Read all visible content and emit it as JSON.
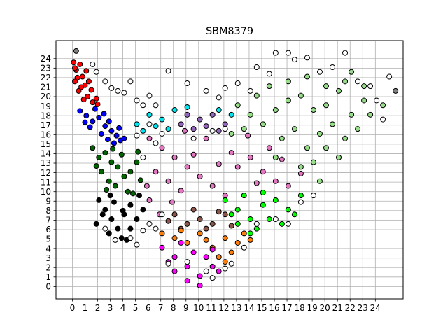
{
  "chart_data": {
    "type": "scatter",
    "title": "SBM8379",
    "xlabel": "",
    "ylabel": "",
    "xlim": [
      -1.3,
      26.2
    ],
    "ylim": [
      -1.3,
      25.9
    ],
    "xticks": [
      0,
      1,
      2,
      3,
      4,
      5,
      6,
      7,
      8,
      9,
      10,
      11,
      12,
      13,
      14,
      15,
      16,
      17,
      18,
      19,
      20,
      21,
      22,
      23,
      24
    ],
    "yticks": [
      0,
      1,
      2,
      3,
      4,
      5,
      6,
      7,
      8,
      9,
      10,
      11,
      12,
      13,
      14,
      15,
      16,
      17,
      18,
      19,
      20,
      21,
      22,
      23,
      24
    ],
    "grid": true,
    "marker": "circle, black edge",
    "clusters": [
      {
        "color": "#ff0000",
        "points": [
          [
            0.1,
            23.6
          ],
          [
            0.3,
            22.8
          ],
          [
            0.6,
            23.4
          ],
          [
            0.2,
            21.6
          ],
          [
            0.8,
            22.1
          ],
          [
            1.0,
            21.2
          ],
          [
            0.5,
            20.6
          ],
          [
            1.2,
            20.0
          ],
          [
            1.5,
            20.7
          ],
          [
            0.9,
            19.7
          ],
          [
            1.6,
            19.4
          ],
          [
            0.4,
            22.0
          ],
          [
            1.1,
            22.7
          ],
          [
            0.7,
            21.0
          ],
          [
            1.9,
            19.8
          ],
          [
            1.3,
            21.6
          ],
          [
            2.0,
            19.2
          ],
          [
            0.2,
            23.0
          ]
        ]
      },
      {
        "color": "#0000ff",
        "points": [
          [
            0.6,
            18.5
          ],
          [
            1.1,
            18.0
          ],
          [
            1.6,
            17.4
          ],
          [
            2.1,
            17.8
          ],
          [
            2.6,
            16.9
          ],
          [
            3.1,
            16.4
          ],
          [
            3.5,
            15.9
          ],
          [
            1.4,
            16.8
          ],
          [
            2.3,
            16.1
          ],
          [
            2.8,
            15.5
          ],
          [
            3.8,
            15.4
          ],
          [
            1.0,
            17.3
          ],
          [
            2.9,
            17.4
          ],
          [
            3.3,
            15.1
          ],
          [
            1.8,
            18.7
          ],
          [
            2.5,
            18.2
          ],
          [
            3.7,
            16.7
          ],
          [
            4.1,
            15.6
          ]
        ]
      },
      {
        "color": "#006400",
        "points": [
          [
            1.6,
            14.6
          ],
          [
            2.1,
            13.6
          ],
          [
            2.6,
            14.1
          ],
          [
            3.1,
            13.1
          ],
          [
            3.6,
            12.6
          ],
          [
            2.3,
            12.1
          ],
          [
            2.9,
            11.1
          ],
          [
            3.4,
            10.6
          ],
          [
            4.1,
            11.6
          ],
          [
            4.6,
            12.1
          ],
          [
            5.1,
            13.1
          ],
          [
            5.4,
            11.2
          ],
          [
            3.9,
            13.9
          ],
          [
            2.7,
            10.2
          ],
          [
            4.4,
            10.0
          ],
          [
            1.9,
            12.7
          ],
          [
            5.2,
            14.2
          ],
          [
            3.2,
            14.5
          ],
          [
            4.8,
            9.8
          ]
        ]
      },
      {
        "color": "#000000",
        "points": [
          [
            2.1,
            9.1
          ],
          [
            2.6,
            8.1
          ],
          [
            3.1,
            7.1
          ],
          [
            3.6,
            6.1
          ],
          [
            4.1,
            7.6
          ],
          [
            4.6,
            8.6
          ],
          [
            2.9,
            5.6
          ],
          [
            3.9,
            5.1
          ],
          [
            4.6,
            6.1
          ],
          [
            5.1,
            7.1
          ],
          [
            2.4,
            7.6
          ],
          [
            3.3,
            8.9
          ],
          [
            5.3,
            9.6
          ],
          [
            4.3,
            4.9
          ],
          [
            1.9,
            6.6
          ],
          [
            5.6,
            8.1
          ],
          [
            3.0,
            9.6
          ],
          [
            4.0,
            8.0
          ]
        ]
      },
      {
        "color": "#e377c2",
        "points": [
          [
            6.1,
            15.6
          ],
          [
            7.1,
            14.6
          ],
          [
            8.1,
            13.6
          ],
          [
            9.1,
            12.6
          ],
          [
            10.1,
            11.6
          ],
          [
            11.1,
            10.6
          ],
          [
            12.1,
            9.6
          ],
          [
            6.6,
            12.1
          ],
          [
            7.6,
            11.1
          ],
          [
            8.6,
            10.1
          ],
          [
            13.1,
            12.6
          ],
          [
            14.1,
            13.6
          ],
          [
            15.1,
            12.1
          ],
          [
            16.1,
            11.1
          ],
          [
            17.1,
            10.6
          ],
          [
            6.1,
            9.1
          ],
          [
            10.6,
            15.6
          ],
          [
            12.6,
            14.1
          ],
          [
            15.6,
            14.6
          ],
          [
            9.6,
            13.9
          ],
          [
            11.6,
            12.9
          ],
          [
            7.9,
            8.9
          ],
          [
            14.6,
            10.9
          ],
          [
            16.6,
            13.4
          ],
          [
            18.1,
            11.9
          ],
          [
            8.9,
            16.4
          ],
          [
            13.9,
            15.9
          ],
          [
            6.9,
            7.6
          ],
          [
            5.9,
            10.6
          ]
        ]
      },
      {
        "color": "#8c564b",
        "points": [
          [
            8.1,
            7.6
          ],
          [
            9.1,
            6.6
          ],
          [
            10.1,
            7.1
          ],
          [
            11.1,
            6.6
          ],
          [
            12.1,
            7.6
          ],
          [
            8.6,
            6.1
          ],
          [
            9.6,
            8.1
          ],
          [
            10.6,
            6.1
          ],
          [
            11.6,
            7.9
          ],
          [
            12.6,
            6.4
          ],
          [
            7.6,
            6.9
          ]
        ]
      },
      {
        "color": "#ff7f0e",
        "points": [
          [
            7.1,
            5.6
          ],
          [
            8.1,
            5.1
          ],
          [
            9.1,
            4.6
          ],
          [
            10.1,
            5.6
          ],
          [
            11.1,
            4.1
          ],
          [
            12.1,
            5.1
          ],
          [
            13.1,
            4.6
          ],
          [
            11.6,
            3.1
          ],
          [
            12.6,
            3.6
          ],
          [
            13.6,
            5.6
          ],
          [
            10.6,
            4.9
          ],
          [
            8.6,
            5.9
          ],
          [
            14.1,
            4.9
          ],
          [
            12.1,
            2.6
          ]
        ]
      },
      {
        "color": "#ff00ff",
        "points": [
          [
            7.1,
            4.1
          ],
          [
            8.1,
            3.1
          ],
          [
            9.1,
            2.1
          ],
          [
            10.1,
            1.1
          ],
          [
            10.1,
            0.1
          ],
          [
            11.1,
            2.1
          ],
          [
            9.6,
            3.6
          ],
          [
            8.6,
            4.6
          ],
          [
            10.6,
            3.1
          ],
          [
            11.6,
            1.6
          ],
          [
            7.6,
            2.6
          ],
          [
            9.1,
            0.6
          ],
          [
            11.1,
            3.9
          ],
          [
            8.1,
            1.6
          ]
        ]
      },
      {
        "color": "#00ff00",
        "points": [
          [
            12.1,
            9.1
          ],
          [
            13.1,
            8.1
          ],
          [
            14.1,
            7.1
          ],
          [
            15.1,
            8.6
          ],
          [
            16.1,
            9.1
          ],
          [
            17.1,
            8.1
          ],
          [
            14.6,
            6.1
          ],
          [
            13.6,
            9.6
          ],
          [
            12.6,
            7.6
          ],
          [
            15.6,
            7.1
          ],
          [
            18.1,
            9.6
          ],
          [
            16.6,
            6.6
          ],
          [
            14.1,
            5.6
          ],
          [
            17.6,
            7.6
          ],
          [
            13.1,
            6.6
          ],
          [
            15.1,
            9.9
          ]
        ]
      },
      {
        "color": "#9467bd",
        "points": [
          [
            9.1,
            18.1
          ],
          [
            10.1,
            17.6
          ],
          [
            11.1,
            18.1
          ],
          [
            12.1,
            17.1
          ],
          [
            9.6,
            16.6
          ],
          [
            10.6,
            16.9
          ],
          [
            11.6,
            16.4
          ],
          [
            8.6,
            17.1
          ]
        ]
      },
      {
        "color": "#00e5ee",
        "points": [
          [
            5.1,
            17.1
          ],
          [
            6.1,
            18.1
          ],
          [
            7.1,
            17.6
          ],
          [
            8.1,
            18.6
          ],
          [
            9.1,
            18.9
          ],
          [
            11.6,
            18.6
          ],
          [
            12.6,
            18.1
          ],
          [
            7.6,
            16.6
          ],
          [
            5.6,
            16.4
          ],
          [
            6.6,
            16.9
          ]
        ]
      },
      {
        "color": "#98df8a",
        "points": [
          [
            13.1,
            19.1
          ],
          [
            14.1,
            18.1
          ],
          [
            15.1,
            17.1
          ],
          [
            16.1,
            18.6
          ],
          [
            17.1,
            19.6
          ],
          [
            18.1,
            20.1
          ],
          [
            19.1,
            18.6
          ],
          [
            20.1,
            19.1
          ],
          [
            21.1,
            20.6
          ],
          [
            22.1,
            18.1
          ],
          [
            23.1,
            19.6
          ],
          [
            13.6,
            16.6
          ],
          [
            14.6,
            20.1
          ],
          [
            16.6,
            15.6
          ],
          [
            17.6,
            16.6
          ],
          [
            18.6,
            14.6
          ],
          [
            19.6,
            16.1
          ],
          [
            20.6,
            17.1
          ],
          [
            21.6,
            15.6
          ],
          [
            22.6,
            16.6
          ],
          [
            23.6,
            18.1
          ],
          [
            18.1,
            12.6
          ],
          [
            19.1,
            13.1
          ],
          [
            20.1,
            14.6
          ],
          [
            21.1,
            13.6
          ],
          [
            17.1,
            21.6
          ],
          [
            18.6,
            22.1
          ],
          [
            20.1,
            21.1
          ],
          [
            22.1,
            22.6
          ],
          [
            15.6,
            21.1
          ],
          [
            12.6,
            16.1
          ],
          [
            24.6,
            19.1
          ],
          [
            19.6,
            11.1
          ],
          [
            21.6,
            21.6
          ],
          [
            16.1,
            13.6
          ],
          [
            23.1,
            21.1
          ]
        ]
      },
      {
        "color": "#ffffff",
        "points": [
          [
            1.6,
            23.4
          ],
          [
            1.9,
            22.6
          ],
          [
            2.6,
            21.6
          ],
          [
            3.1,
            20.9
          ],
          [
            3.6,
            20.6
          ],
          [
            4.1,
            20.4
          ],
          [
            5.1,
            19.6
          ],
          [
            5.6,
            19.1
          ],
          [
            6.1,
            20.1
          ],
          [
            6.6,
            19.1
          ],
          [
            4.6,
            21.6
          ],
          [
            7.6,
            22.7
          ],
          [
            9.1,
            21.4
          ],
          [
            10.6,
            20.6
          ],
          [
            11.6,
            19.9
          ],
          [
            12.1,
            20.9
          ],
          [
            13.1,
            21.4
          ],
          [
            14.1,
            20.6
          ],
          [
            14.6,
            23.1
          ],
          [
            15.6,
            22.4
          ],
          [
            16.1,
            24.6
          ],
          [
            17.1,
            24.6
          ],
          [
            17.6,
            23.9
          ],
          [
            18.6,
            24.1
          ],
          [
            19.6,
            22.6
          ],
          [
            20.6,
            23.1
          ],
          [
            21.6,
            24.6
          ],
          [
            22.6,
            21.6
          ],
          [
            23.6,
            21.1
          ],
          [
            24.1,
            19.6
          ],
          [
            25.1,
            22.1
          ],
          [
            24.6,
            17.6
          ],
          [
            2.6,
            6.1
          ],
          [
            3.4,
            4.9
          ],
          [
            4.6,
            5.1
          ],
          [
            5.1,
            4.4
          ],
          [
            5.6,
            5.9
          ],
          [
            6.6,
            6.1
          ],
          [
            6.1,
            6.6
          ],
          [
            7.1,
            7.6
          ],
          [
            7.6,
            2.4
          ],
          [
            9.1,
            2.6
          ],
          [
            10.6,
            1.6
          ],
          [
            11.1,
            0.9
          ],
          [
            12.6,
            2.4
          ],
          [
            13.6,
            4.1
          ],
          [
            12.1,
            1.9
          ],
          [
            14.6,
            6.6
          ],
          [
            16.1,
            7.1
          ],
          [
            17.1,
            6.6
          ],
          [
            18.1,
            8.9
          ],
          [
            19.1,
            9.6
          ],
          [
            5.6,
            13.6
          ],
          [
            6.6,
            15.1
          ],
          [
            7.1,
            16.1
          ],
          [
            9.6,
            15.6
          ],
          [
            11.1,
            16.4
          ],
          [
            12.1,
            16.6
          ],
          [
            5.1,
            15.9
          ],
          [
            6.1,
            17.1
          ]
        ]
      },
      {
        "color": "#808080",
        "points": [
          [
            0.3,
            24.8
          ],
          [
            25.6,
            20.6
          ]
        ]
      }
    ]
  }
}
